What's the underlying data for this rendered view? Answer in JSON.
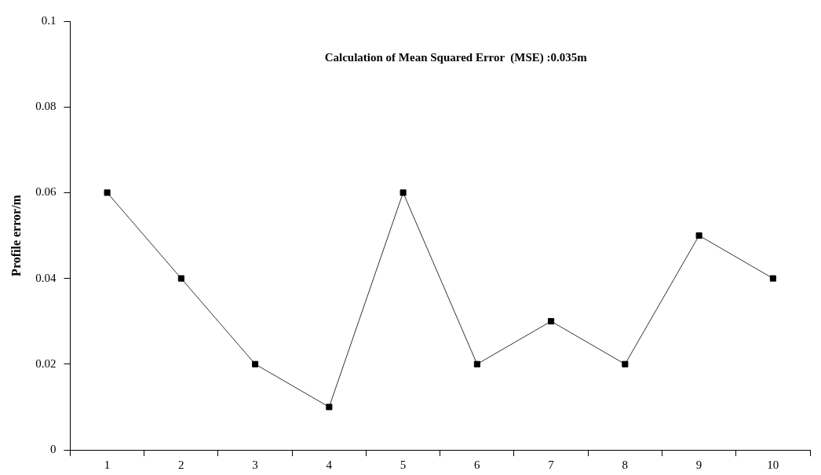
{
  "chart_data": {
    "type": "line",
    "ylabel": "Profile error/m",
    "annotations": [
      "Calculation of Mean Squared Error  (MSE) :0.035m"
    ],
    "categories": [
      "1",
      "2",
      "3",
      "4",
      "5",
      "6",
      "7",
      "8",
      "9",
      "10"
    ],
    "series": [
      {
        "color": "#000000",
        "values": [
          0.06,
          0.04,
          0.02,
          0.01,
          0.06,
          0.02,
          0.03,
          0.02,
          0.05,
          0.04
        ]
      }
    ],
    "ylim": [
      0,
      0.1
    ],
    "yticks": [
      0,
      0.02,
      0.04,
      0.06,
      0.08,
      0.1
    ],
    "grid": false,
    "legend": false,
    "marker": "square",
    "line_style": "solid"
  }
}
